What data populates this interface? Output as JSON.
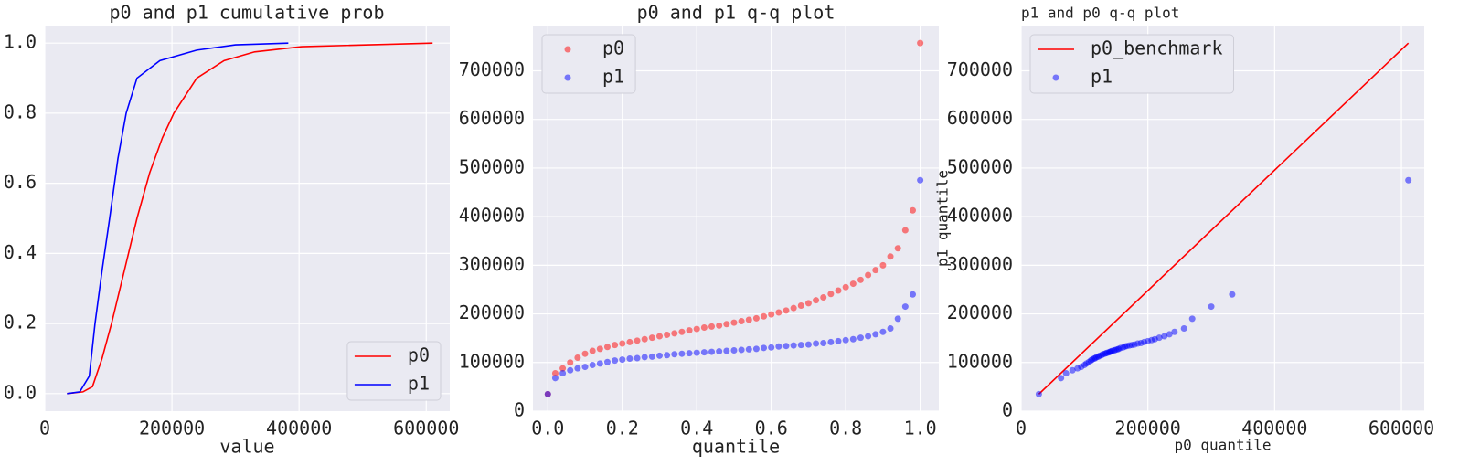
{
  "chart_data": [
    {
      "type": "line",
      "title": "p0 and p1 cumulative prob",
      "xlabel": "value",
      "xlim": [
        0,
        637000
      ],
      "ylim": [
        -0.05,
        1.05
      ],
      "xticks": [
        0,
        200000,
        400000,
        600000
      ],
      "yticks": [
        {
          "value": 0,
          "label": "0.0"
        },
        0.2,
        0.4,
        0.6,
        0.8,
        {
          "value": 1,
          "label": "1.0"
        }
      ],
      "grid": true,
      "legend": "lower right",
      "series": [
        {
          "name": "p0",
          "color": "#ff0000",
          "kind": "line",
          "x": [
            35000,
            60000,
            75000,
            90000,
            105000,
            125000,
            145000,
            165000,
            185000,
            203000,
            239000,
            282000,
            330000,
            404000,
            610000
          ],
          "values": [
            0,
            0.005,
            0.02,
            0.1,
            0.2,
            0.35,
            0.5,
            0.63,
            0.73,
            0.8,
            0.9,
            0.95,
            0.975,
            0.99,
            1.0
          ]
        },
        {
          "name": "p1",
          "color": "#0000ff",
          "kind": "line",
          "x": [
            35000,
            55000,
            70000,
            79000,
            90000,
            102000,
            115000,
            128000,
            145000,
            181000,
            239000,
            300000,
            383000
          ],
          "values": [
            0,
            0.005,
            0.05,
            0.2,
            0.35,
            0.5,
            0.67,
            0.8,
            0.9,
            0.95,
            0.98,
            0.995,
            1.0
          ]
        }
      ]
    },
    {
      "type": "scatter",
      "title": "p0 and p1 q-q plot",
      "xlabel": "quantile",
      "xlim": [
        -0.04,
        1.05
      ],
      "ylim": [
        0,
        793000
      ],
      "xticks": [
        {
          "value": 0,
          "label": "0.0"
        },
        0.2,
        0.4,
        0.6,
        0.8,
        {
          "value": 1,
          "label": "1.0"
        }
      ],
      "yticks": [
        0,
        100000,
        200000,
        300000,
        400000,
        500000,
        600000,
        700000
      ],
      "grid": true,
      "legend": "upper left",
      "x": [
        0,
        0.02,
        0.04,
        0.06,
        0.08,
        0.1,
        0.12,
        0.14,
        0.16,
        0.18,
        0.2,
        0.22,
        0.24,
        0.26,
        0.28,
        0.3,
        0.32,
        0.34,
        0.36,
        0.38,
        0.4,
        0.42,
        0.44,
        0.46,
        0.48,
        0.5,
        0.52,
        0.54,
        0.56,
        0.58,
        0.6,
        0.62,
        0.64,
        0.66,
        0.68,
        0.7,
        0.72,
        0.74,
        0.76,
        0.78,
        0.8,
        0.82,
        0.84,
        0.86,
        0.88,
        0.9,
        0.92,
        0.94,
        0.96,
        0.98,
        1.0
      ],
      "series": [
        {
          "name": "p0",
          "color": "#ff0000",
          "alpha": 0.5,
          "kind": "scatter",
          "values": [
            35000,
            78000,
            88000,
            100000,
            110000,
            118000,
            124000,
            128000,
            132000,
            136000,
            139000,
            142000,
            145000,
            148000,
            151000,
            154000,
            157000,
            160000,
            163000,
            166000,
            169000,
            172000,
            174000,
            176000,
            179000,
            182000,
            185000,
            188000,
            191000,
            195000,
            199000,
            203000,
            207000,
            212000,
            217000,
            222000,
            228000,
            234000,
            241000,
            248000,
            255000,
            262000,
            270000,
            280000,
            290000,
            300000,
            318000,
            335000,
            372000,
            413000,
            757000
          ]
        },
        {
          "name": "p1",
          "color": "#0000ff",
          "alpha": 0.5,
          "kind": "scatter",
          "values": [
            35000,
            68000,
            78000,
            84000,
            88000,
            91000,
            95000,
            98000,
            101000,
            104000,
            106000,
            108000,
            109000,
            111000,
            112000,
            114000,
            115000,
            117000,
            118000,
            119000,
            120000,
            121000,
            122000,
            123000,
            124000,
            125000,
            126000,
            127000,
            128000,
            130000,
            131000,
            133000,
            134000,
            135000,
            136000,
            137000,
            139000,
            140000,
            142000,
            144000,
            146000,
            148000,
            151000,
            154000,
            158000,
            163000,
            170000,
            190000,
            215000,
            240000,
            475000
          ]
        }
      ]
    },
    {
      "type": "scatter",
      "title": "p1 and p0 q-q plot",
      "xlabel": "p0 quantile",
      "ylabel": "p1 quantile",
      "xlim": [
        0,
        636000
      ],
      "ylim": [
        0,
        793000
      ],
      "xticks": [
        0,
        200000,
        400000,
        600000
      ],
      "yticks": [
        0,
        100000,
        200000,
        300000,
        400000,
        500000,
        600000,
        700000
      ],
      "grid": true,
      "legend": "upper left",
      "series": [
        {
          "name": "p0_benchmark",
          "color": "#ff0000",
          "kind": "line",
          "x": [
            28000,
            611000
          ],
          "values": [
            35000,
            757000
          ]
        },
        {
          "name": "p1",
          "color": "#0000ff",
          "alpha": 0.5,
          "kind": "scatter",
          "x": [
            28000,
            63000,
            71000,
            81000,
            89000,
            95000,
            100000,
            103000,
            107000,
            110000,
            112000,
            115000,
            117000,
            119000,
            122000,
            124000,
            127000,
            129000,
            132000,
            134000,
            136000,
            139000,
            140000,
            142000,
            144000,
            147000,
            149000,
            152000,
            154000,
            157000,
            161000,
            164000,
            167000,
            171000,
            175000,
            179000,
            184000,
            189000,
            194000,
            200000,
            206000,
            211000,
            218000,
            226000,
            234000,
            242000,
            257000,
            270000,
            300000,
            333000,
            611000
          ],
          "values": [
            35000,
            68000,
            78000,
            84000,
            88000,
            91000,
            95000,
            98000,
            101000,
            104000,
            106000,
            108000,
            109000,
            111000,
            112000,
            114000,
            115000,
            117000,
            118000,
            119000,
            120000,
            121000,
            122000,
            123000,
            124000,
            125000,
            126000,
            127000,
            128000,
            130000,
            131000,
            133000,
            134000,
            135000,
            136000,
            137000,
            139000,
            140000,
            142000,
            144000,
            146000,
            148000,
            151000,
            154000,
            158000,
            163000,
            170000,
            190000,
            215000,
            240000,
            475000
          ]
        }
      ]
    }
  ]
}
